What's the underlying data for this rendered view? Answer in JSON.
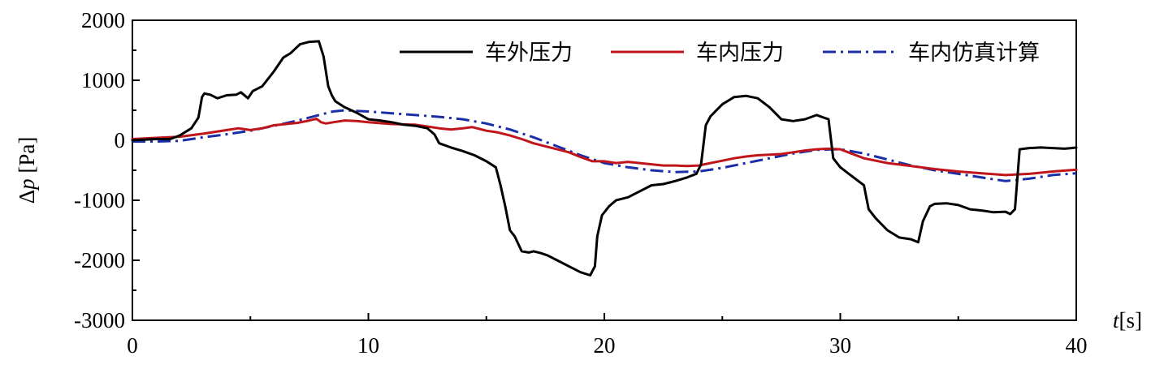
{
  "chart_data": {
    "type": "line",
    "xlabel_var": "t",
    "xlabel_unit": "[s]",
    "ylabel_symbol": "Δ",
    "ylabel_var": "p",
    "ylabel_unit": " [Pa]",
    "xlim": [
      0,
      40
    ],
    "ylim": [
      -3000,
      2000
    ],
    "xticks": [
      0,
      10,
      20,
      30,
      40
    ],
    "yticks": [
      2000,
      1000,
      0,
      -1000,
      -2000,
      -3000
    ],
    "grid": false,
    "legend_position": "top-right",
    "colors": {
      "outside": "#000000",
      "inside": "#c0161b",
      "simulation": "#1a2ea8"
    },
    "series": [
      {
        "name": "车外压力",
        "style": "solid",
        "x": [
          0,
          1,
          1.6,
          2,
          2.5,
          2.8,
          2.95,
          3.05,
          3.3,
          3.6,
          4,
          4.4,
          4.6,
          4.9,
          5.1,
          5.5,
          6,
          6.4,
          6.7,
          7.1,
          7.5,
          7.9,
          8.1,
          8.3,
          8.45,
          8.6,
          9,
          9.5,
          10,
          10.5,
          11,
          11.5,
          12,
          12.5,
          12.8,
          13,
          13.5,
          14,
          14.5,
          15,
          15.4,
          15.6,
          15.8,
          16,
          16.2,
          16.5,
          16.8,
          17,
          17.3,
          17.6,
          18,
          18.5,
          19,
          19.4,
          19.6,
          19.7,
          19.9,
          20.2,
          20.5,
          21,
          21.5,
          22,
          22.5,
          23,
          23.5,
          23.9,
          24.1,
          24.3,
          24.5,
          25,
          25.5,
          26,
          26.5,
          27,
          27.5,
          28,
          28.5,
          29,
          29.5,
          29.7,
          30,
          30.5,
          31,
          31.2,
          31.5,
          32,
          32.5,
          33,
          33.3,
          33.5,
          33.8,
          34,
          34.5,
          35,
          35.5,
          36,
          36.5,
          37,
          37.2,
          37.4,
          37.6,
          38,
          38.5,
          39,
          39.5,
          39.8,
          40
        ],
        "y": [
          0,
          20,
          20,
          80,
          200,
          380,
          720,
          780,
          760,
          700,
          750,
          760,
          800,
          700,
          820,
          900,
          1150,
          1380,
          1450,
          1600,
          1640,
          1650,
          1400,
          900,
          750,
          650,
          550,
          460,
          350,
          330,
          300,
          260,
          240,
          200,
          100,
          -50,
          -120,
          -180,
          -250,
          -350,
          -450,
          -750,
          -1100,
          -1500,
          -1600,
          -1850,
          -1870,
          -1850,
          -1880,
          -1920,
          -2000,
          -2100,
          -2200,
          -2250,
          -2100,
          -1600,
          -1250,
          -1100,
          -1000,
          -950,
          -850,
          -750,
          -730,
          -680,
          -620,
          -560,
          -400,
          250,
          400,
          600,
          720,
          740,
          700,
          550,
          350,
          320,
          350,
          420,
          350,
          -300,
          -450,
          -600,
          -750,
          -1150,
          -1300,
          -1500,
          -1620,
          -1650,
          -1700,
          -1350,
          -1100,
          -1060,
          -1050,
          -1080,
          -1150,
          -1170,
          -1200,
          -1190,
          -1230,
          -1150,
          -150,
          -130,
          -120,
          -130,
          -140,
          -130,
          -120
        ]
      },
      {
        "name": "车内压力",
        "style": "solid",
        "x": [
          0,
          1,
          2,
          3,
          4,
          4.5,
          5,
          5.5,
          6,
          6.5,
          7,
          7.5,
          7.8,
          8,
          8.2,
          8.5,
          9,
          9.5,
          10,
          11,
          12,
          12.5,
          13,
          13.5,
          14,
          14.4,
          14.6,
          15,
          15.5,
          16,
          16.5,
          17,
          17.5,
          18,
          18.5,
          19,
          19.5,
          20,
          20.5,
          21,
          21.5,
          22,
          22.5,
          23,
          23.5,
          24,
          24.5,
          25,
          25.5,
          26,
          26.5,
          27,
          27.5,
          28,
          28.5,
          29,
          29.5,
          30,
          31,
          32,
          33,
          34,
          35,
          36,
          37,
          38,
          39,
          40
        ],
        "y": [
          20,
          40,
          60,
          110,
          170,
          200,
          170,
          200,
          250,
          270,
          290,
          330,
          360,
          300,
          280,
          300,
          330,
          320,
          300,
          270,
          260,
          230,
          200,
          180,
          200,
          220,
          200,
          160,
          130,
          80,
          20,
          -50,
          -100,
          -150,
          -200,
          -280,
          -350,
          -350,
          -380,
          -360,
          -380,
          -400,
          -420,
          -420,
          -430,
          -420,
          -380,
          -340,
          -300,
          -270,
          -250,
          -240,
          -230,
          -200,
          -170,
          -150,
          -140,
          -150,
          -300,
          -380,
          -430,
          -480,
          -520,
          -550,
          -580,
          -560,
          -520,
          -490
        ]
      },
      {
        "name": "车内仿真计算",
        "style": "dashdot",
        "x": [
          0,
          1,
          2,
          3,
          4,
          5,
          6,
          7,
          8,
          8.5,
          9,
          10,
          11,
          12,
          13,
          14,
          15,
          16,
          17,
          18,
          19,
          20,
          21,
          22,
          23,
          24,
          25,
          26,
          27,
          28,
          29,
          30,
          31,
          32,
          33,
          34,
          35,
          36,
          37,
          38,
          39,
          40
        ],
        "y": [
          -20,
          -20,
          -10,
          50,
          100,
          160,
          240,
          330,
          430,
          480,
          500,
          480,
          450,
          420,
          390,
          350,
          280,
          180,
          50,
          -100,
          -250,
          -380,
          -450,
          -500,
          -530,
          -520,
          -460,
          -380,
          -300,
          -220,
          -160,
          -150,
          -220,
          -320,
          -420,
          -500,
          -560,
          -620,
          -680,
          -640,
          -580,
          -550
        ]
      }
    ]
  }
}
